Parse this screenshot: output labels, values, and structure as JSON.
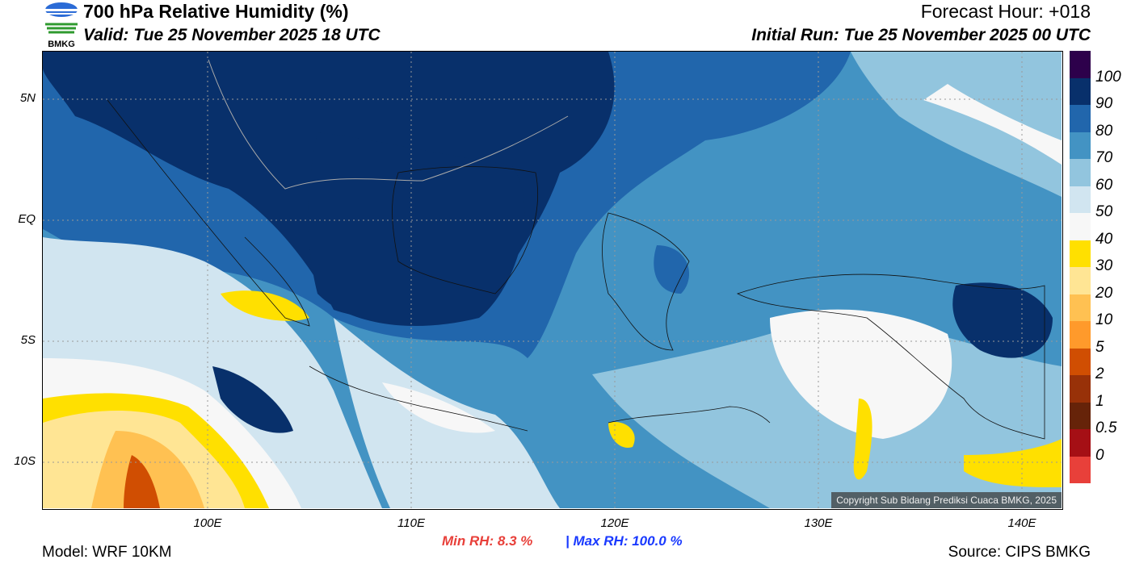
{
  "header": {
    "title": "700 hPa Relative Humidity (%)",
    "valid": "Valid: Tue 25 November 2025 18 UTC",
    "forecast_hour": "Forecast Hour: +018",
    "initial_run": "Initial Run: Tue 25 November 2025 00 UTC",
    "logo_text": "BMKG"
  },
  "map": {
    "lat_labels": [
      "5N",
      "EQ",
      "5S",
      "10S"
    ],
    "lon_labels": [
      "100E",
      "110E",
      "120E",
      "130E",
      "140E"
    ],
    "copyright": "Copyright Sub Bidang Prediksi Cuaca BMKG, 2025"
  },
  "colorbar": {
    "colors": [
      "#2d004b",
      "#08306b",
      "#2166ac",
      "#4393c3",
      "#92c5de",
      "#d1e5f0",
      "#f7f7f7",
      "#ffe000",
      "#ffe594",
      "#ffc152",
      "#ff9a2b",
      "#d04e02",
      "#983108",
      "#662309",
      "#a50f15",
      "#e8403a"
    ],
    "labels": [
      "100",
      "90",
      "80",
      "70",
      "60",
      "50",
      "40",
      "30",
      "20",
      "10",
      "5",
      "2",
      "1",
      "0.5",
      "0"
    ]
  },
  "footer": {
    "model": "Model: WRF 10KM",
    "min_rh": "Min RH:   8.3 %",
    "max_rh": "| Max RH: 100.0 %",
    "source": "Source: CIPS BMKG"
  }
}
